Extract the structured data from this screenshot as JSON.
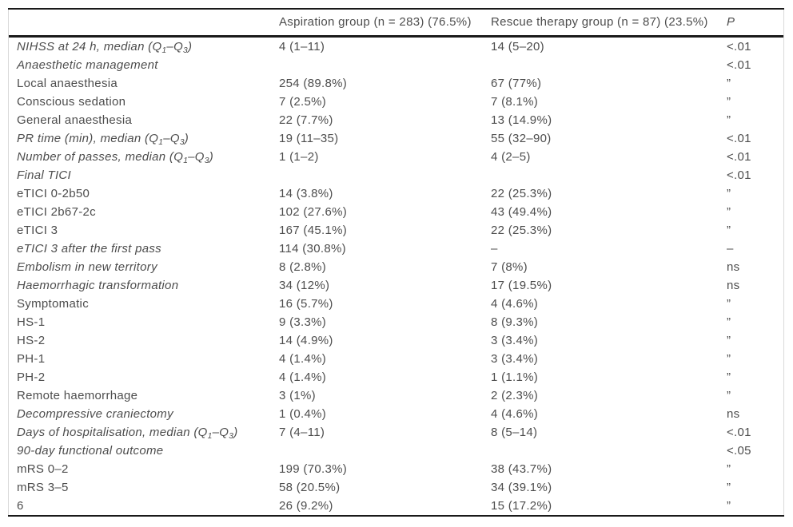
{
  "colors": {
    "text": "#4d4d4d",
    "rule": "#1a1a1a",
    "border": "#d9d9d9"
  },
  "table": {
    "header": {
      "label_col": "",
      "aspiration": "Aspiration group (n = 283) (76.5%)",
      "rescue": "Rescue therapy group (n = 87) (23.5%)",
      "p": "P"
    },
    "rows": [
      {
        "label": "NIHSS at 24 h, median (Q₁–Q₃)",
        "italic": true,
        "asp": "4 (1–11)",
        "rescue": "14 (5–20)",
        "p": "<.01"
      },
      {
        "label": "Anaesthetic management",
        "italic": true,
        "asp": "",
        "rescue": "",
        "p": "<.01"
      },
      {
        "label": "Local anaesthesia",
        "italic": false,
        "asp": "254 (89.8%)",
        "rescue": "67 (77%)",
        "p": "”"
      },
      {
        "label": "Conscious sedation",
        "italic": false,
        "asp": "7 (2.5%)",
        "rescue": "7 (8.1%)",
        "p": "”"
      },
      {
        "label": "General anaesthesia",
        "italic": false,
        "asp": "22 (7.7%)",
        "rescue": "13 (14.9%)",
        "p": "”"
      },
      {
        "label": "PR time (min), median (Q₁–Q₃)",
        "italic": true,
        "asp": "19 (11–35)",
        "rescue": "55 (32–90)",
        "p": "<.01"
      },
      {
        "label": "Number of passes, median (Q₁–Q₃)",
        "italic": true,
        "asp": "1 (1–2)",
        "rescue": "4 (2–5)",
        "p": "<.01"
      },
      {
        "label": "Final TICI",
        "italic": true,
        "asp": "",
        "rescue": "",
        "p": "<.01"
      },
      {
        "label": "eTICI 0-2b50",
        "italic": false,
        "asp": "14 (3.8%)",
        "rescue": "22 (25.3%)",
        "p": "”"
      },
      {
        "label": "eTICI 2b67-2c",
        "italic": false,
        "asp": "102 (27.6%)",
        "rescue": "43 (49.4%)",
        "p": "”"
      },
      {
        "label": "eTICI 3",
        "italic": false,
        "asp": "167 (45.1%)",
        "rescue": "22 (25.3%)",
        "p": "”"
      },
      {
        "label": "eTICI 3 after the first pass",
        "italic": true,
        "asp": "114 (30.8%)",
        "rescue": "–",
        "p": "–"
      },
      {
        "label": "Embolism in new territory",
        "italic": true,
        "asp": "8 (2.8%)",
        "rescue": "7 (8%)",
        "p": "ns"
      },
      {
        "label": "Haemorrhagic transformation",
        "italic": true,
        "asp": "34 (12%)",
        "rescue": "17 (19.5%)",
        "p": "ns"
      },
      {
        "label": "Symptomatic",
        "italic": false,
        "asp": "16 (5.7%)",
        "rescue": "4 (4.6%)",
        "p": "”"
      },
      {
        "label": "HS-1",
        "italic": false,
        "asp": "9 (3.3%)",
        "rescue": "8 (9.3%)",
        "p": "”"
      },
      {
        "label": "HS-2",
        "italic": false,
        "asp": "14 (4.9%)",
        "rescue": "3 (3.4%)",
        "p": "”"
      },
      {
        "label": "PH-1",
        "italic": false,
        "asp": "4 (1.4%)",
        "rescue": "3 (3.4%)",
        "p": "”"
      },
      {
        "label": "PH-2",
        "italic": false,
        "asp": "4 (1.4%)",
        "rescue": "1 (1.1%)",
        "p": "”"
      },
      {
        "label": "Remote haemorrhage",
        "italic": false,
        "asp": "3 (1%)",
        "rescue": "2 (2.3%)",
        "p": "”"
      },
      {
        "label": "Decompressive craniectomy",
        "italic": true,
        "asp": "1 (0.4%)",
        "rescue": "4 (4.6%)",
        "p": "ns"
      },
      {
        "label": "Days of hospitalisation, median (Q₁–Q₃)",
        "italic": true,
        "asp": "7 (4–11)",
        "rescue": "8 (5–14)",
        "p": "<.01"
      },
      {
        "label": "90-day functional outcome",
        "italic": true,
        "asp": "",
        "rescue": "",
        "p": "<.05"
      },
      {
        "label": "mRS 0–2",
        "italic": false,
        "asp": "199 (70.3%)",
        "rescue": "38 (43.7%)",
        "p": "”"
      },
      {
        "label": "mRS 3–5",
        "italic": false,
        "asp": "58 (20.5%)",
        "rescue": "34 (39.1%)",
        "p": "”"
      },
      {
        "label": "6",
        "italic": false,
        "asp": "26 (9.2%)",
        "rescue": "15 (17.2%)",
        "p": "”"
      }
    ]
  }
}
